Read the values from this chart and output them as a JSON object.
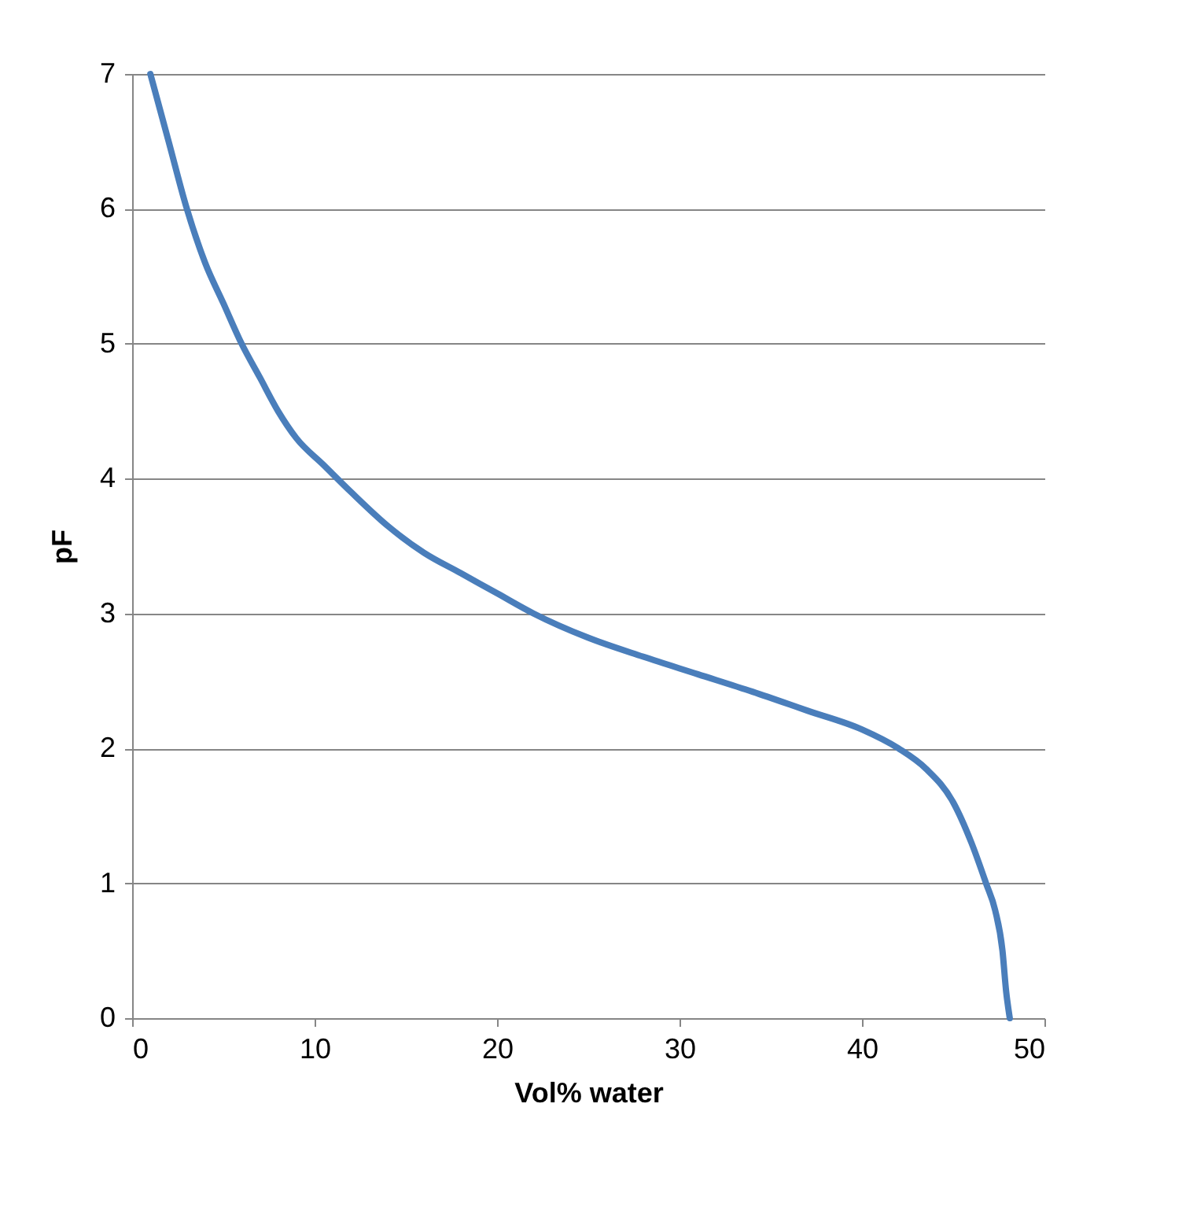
{
  "chart_data": {
    "type": "line",
    "xlabel": "Vol% water",
    "ylabel": "pF",
    "x": [
      1.0,
      2,
      3,
      4,
      5,
      6,
      7,
      8,
      9,
      10.5,
      12,
      14,
      16,
      18,
      20,
      22,
      25,
      28,
      31,
      34,
      37,
      40,
      42,
      43.5,
      45,
      46,
      46.8,
      47.3,
      47.7,
      47.9,
      48.1
    ],
    "series": [
      {
        "color": "#4a7ebb",
        "values": [
          7.0,
          6.5,
          6.0,
          5.6,
          5.3,
          5.0,
          4.75,
          4.5,
          4.3,
          4.1,
          3.9,
          3.65,
          3.45,
          3.3,
          3.15,
          3.0,
          2.82,
          2.68,
          2.55,
          2.42,
          2.28,
          2.14,
          2.0,
          1.85,
          1.6,
          1.3,
          1.0,
          0.8,
          0.5,
          0.2,
          0.0
        ]
      }
    ],
    "xlim": [
      0,
      50
    ],
    "xticks": [
      0,
      10,
      20,
      30,
      40,
      50
    ],
    "ylim": [
      0,
      7
    ],
    "yticks": [
      0,
      1,
      2,
      3,
      4,
      5,
      6,
      7
    ],
    "grid": "y",
    "legend": false,
    "marker": "none",
    "line_style": "solid"
  }
}
